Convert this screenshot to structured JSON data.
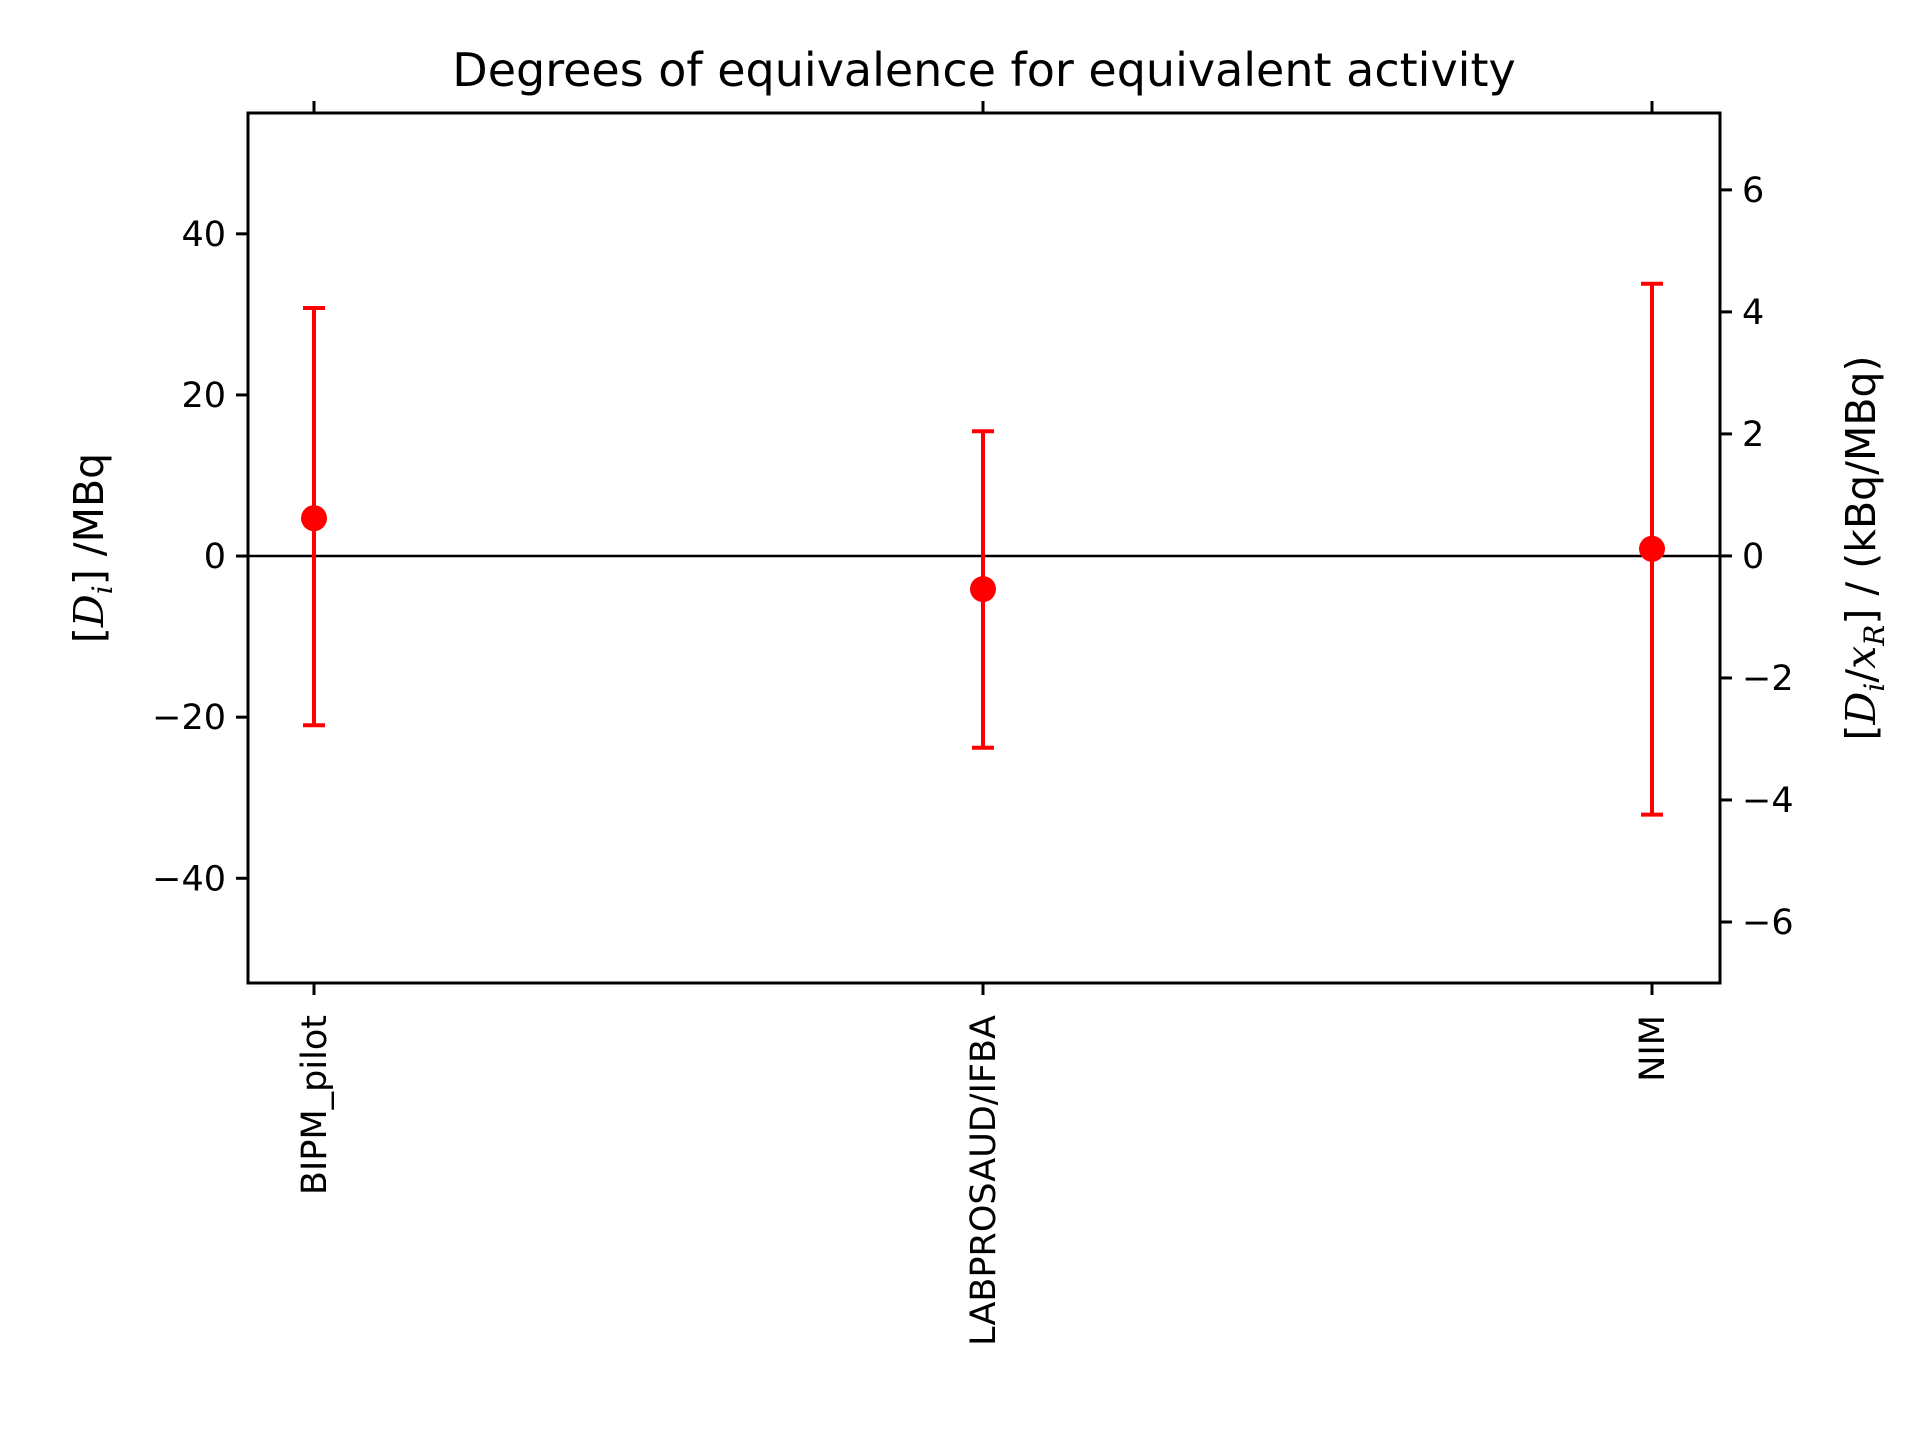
{
  "chart_data": {
    "type": "scatter",
    "title": "Degrees of equivalence for equivalent activity",
    "categories": [
      "BIPM_pilot",
      "LABPROSAUD/IFBA",
      "NIM"
    ],
    "series": [
      {
        "values": [
          4.7,
          -4.1,
          0.9
        ],
        "err_low": [
          -21.0,
          -23.8,
          -32.1
        ],
        "err_high": [
          30.8,
          15.5,
          33.8
        ],
        "color": "#ff0000"
      }
    ],
    "ylabel_left": "[Di] /MBq",
    "ylabel_right": "[Di/xR] / (kBq/MBq)",
    "ylim_left": [
      -53,
      55
    ],
    "yticks_left": [
      -40,
      -20,
      0,
      20,
      40
    ],
    "ylim_right": [
      -7,
      7.26
    ],
    "yticks_right": [
      -6,
      -4,
      -2,
      0,
      2,
      4,
      6
    ],
    "reference_line": 0,
    "grid": false
  },
  "labels": {
    "yticks_left": [
      "−40",
      "−20",
      "0",
      "20",
      "40"
    ],
    "yticks_right": [
      "−6",
      "−4",
      "−2",
      "0",
      "2",
      "4",
      "6"
    ]
  }
}
